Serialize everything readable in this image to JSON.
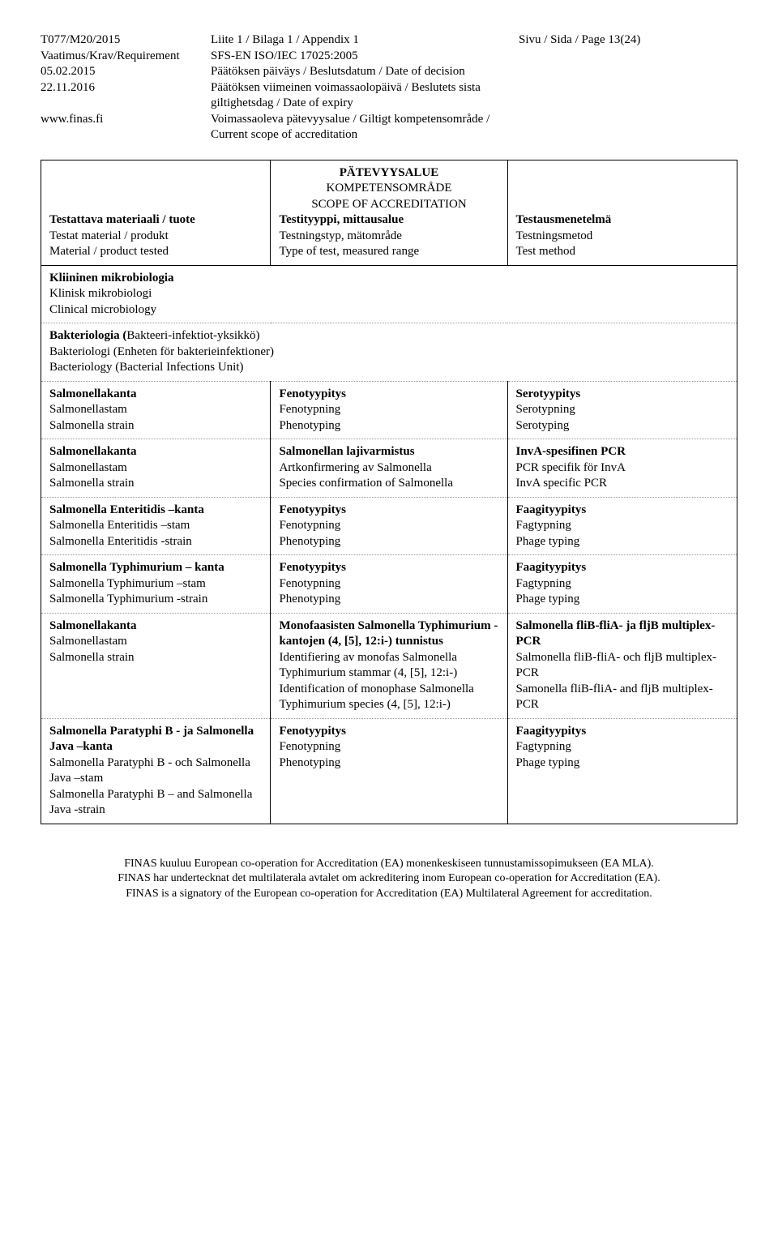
{
  "header": {
    "l1": "T077/M20/2015",
    "l2": "Vaatimus/Krav/Requirement",
    "l3": "05.02.2015",
    "l4": "22.11.2016",
    "l5": "www.finas.fi",
    "m1": "Liite 1 / Bilaga 1 / Appendix 1",
    "m2": "SFS-EN ISO/IEC 17025:2005",
    "m3": "Päätöksen päiväys / Beslutsdatum / Date of decision",
    "m4": "Päätöksen viimeinen voimassaolopäivä / Beslutets sista giltighetsdag / Date of expiry",
    "m5": "Voimassaoleva pätevyysalue / Giltigt kompetensområde / Current scope of accreditation",
    "r1": "Sivu / Sida / Page 13(24)"
  },
  "table_head": {
    "title1": "PÄTEVYYSALUE",
    "title2": "KOMPETENSOMRÅDE",
    "title3": "SCOPE OF ACCREDITATION",
    "c1a": "Testattava materiaali / tuote",
    "c1b": "Testat material / produkt",
    "c1c": "Material / product tested",
    "c2a": "Testityyppi, mittausalue",
    "c2b": "Testningstyp, mätområde",
    "c2c": "Type of test, measured range",
    "c3a": "Testausmenetelmä",
    "c3b": "Testningsmetod",
    "c3c": "Test method"
  },
  "row1": {
    "a1": "Kliininen mikrobiologia",
    "a2": "Klinisk mikrobiologi",
    "a3": "Clinical microbiology"
  },
  "row2": {
    "a1": "Bakteriologia (Bakteeri-infektiot-yksikkö)",
    "a2": "Bakteriologi (Enheten för bakterieinfektioner)",
    "a3": "Bacteriology (Bacterial Infections Unit)"
  },
  "row3": {
    "c1a": "Salmonellakanta",
    "c1b": "Salmonellastam",
    "c1c": "Salmonella strain",
    "c2a": "Fenotyypitys",
    "c2b": "Fenotypning",
    "c2c": "Phenotyping",
    "c3a": "Serotyypitys",
    "c3b": "Serotypning",
    "c3c": "Serotyping"
  },
  "row4": {
    "c1a": "Salmonellakanta",
    "c1b": "Salmonellastam",
    "c1c": "Salmonella strain",
    "c2a": "Salmonellan lajivarmistus",
    "c2b": "Artkonfirmering av Salmonella",
    "c2c": "Species confirmation of Salmonella",
    "c3a": "InvA-spesifinen PCR",
    "c3b": "PCR specifik för InvA",
    "c3c": "InvA specific PCR"
  },
  "row5": {
    "c1a": "Salmonella Enteritidis –kanta",
    "c1b": "Salmonella Enteritidis –stam",
    "c1c": "Salmonella Enteritidis -strain",
    "c2a": "Fenotyypitys",
    "c2b": "Fenotypning",
    "c2c": "Phenotyping",
    "c3a": "Faagityypitys",
    "c3b": "Fagtypning",
    "c3c": "Phage typing"
  },
  "row6": {
    "c1a": "Salmonella Typhimurium – kanta",
    "c1b": "Salmonella Typhimurium –stam",
    "c1c": "Salmonella Typhimurium -strain",
    "c2a": "Fenotyypitys",
    "c2b": "Fenotypning",
    "c2c": "Phenotyping",
    "c3a": "Faagityypitys",
    "c3b": "Fagtypning",
    "c3c": "Phage typing"
  },
  "row7": {
    "c1a": "Salmonellakanta",
    "c1b": "Salmonellastam",
    "c1c": "Salmonella strain",
    "c2a": "Monofaasisten Salmonella Typhimurium -kantojen (4, [5], 12:i-) tunnistus",
    "c2b": "Identifiering av monofas Salmonella Typhimurium stammar (4, [5], 12:i-)",
    "c2c": "Identification of monophase Salmonella Typhimurium species (4, [5], 12:i-)",
    "c3a": "Salmonella fliB-fliA- ja fljB multiplex-PCR",
    "c3b": "Salmonella fliB-fliA- och fljB multiplex-PCR",
    "c3c": "Samonella fliB-fliA- and fljB multiplex-PCR"
  },
  "row8": {
    "c1a": "Salmonella Paratyphi B - ja Salmonella Java –kanta",
    "c1b": "Salmonella Paratyphi B - och Salmonella Java –stam",
    "c1c": "Salmonella Paratyphi B – and Salmonella Java -strain",
    "c2a": "Fenotyypitys",
    "c2b": "Fenotypning",
    "c2c": "Phenotyping",
    "c3a": "Faagityypitys",
    "c3b": "Fagtypning",
    "c3c": "Phage typing"
  },
  "footer": {
    "l1": "FINAS kuuluu European co-operation for Accreditation (EA) monenkeskiseen tunnustamissopimukseen (EA MLA).",
    "l2": "FINAS har undertecknat det multilaterala avtalet om ackreditering inom European co-operation for Accreditation (EA).",
    "l3": "FINAS is a signatory of the European co-operation for Accreditation (EA) Multilateral Agreement for accreditation."
  }
}
